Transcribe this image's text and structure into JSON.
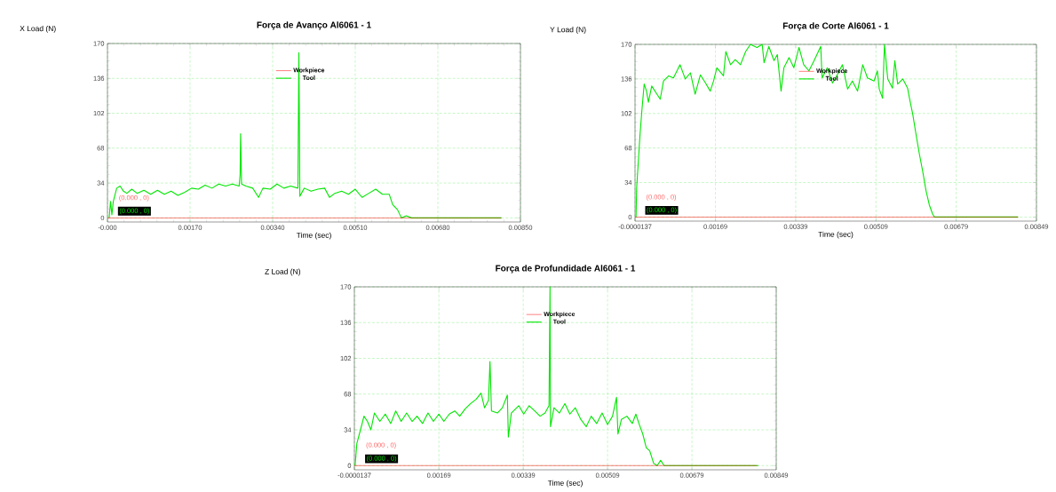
{
  "chart_data": [
    {
      "type": "line",
      "title": "Força de Avanço Al6061 - 1",
      "xlabel": "Time (sec)",
      "ylabel": "X Load (N)",
      "xlim": [
        0,
        0.0085
      ],
      "ylim": [
        -4,
        170
      ],
      "xticks": [
        {
          "value": 0,
          "label": "-0.000"
        },
        {
          "value": 0.0017,
          "label": "0.00170"
        },
        {
          "value": 0.0034,
          "label": "0.00340"
        },
        {
          "value": 0.0051,
          "label": "0.00510"
        },
        {
          "value": 0.0068,
          "label": "0.00680"
        },
        {
          "value": 0.0085,
          "label": "0.00850"
        }
      ],
      "yticks": [
        0,
        34,
        68,
        102,
        136,
        170
      ],
      "grid": true,
      "legend": "top",
      "annotations": [
        "(0.000 , 0)",
        "(0.000 , 0)"
      ],
      "series": [
        {
          "name": "Workpiece",
          "color": "#ff0000",
          "x": [
            0,
            0.0081
          ],
          "values": [
            0,
            0
          ]
        },
        {
          "name": "Tool",
          "color": "#00e600",
          "x": [
            3.5e-05,
            6.3e-05,
            9.1e-05,
            0.00012,
            0.00019,
            0.00026,
            0.00033,
            0.0004,
            0.0005,
            0.00061,
            0.00075,
            0.00089,
            0.00103,
            0.00117,
            0.00131,
            0.00145,
            0.00159,
            0.00173,
            0.00187,
            0.00201,
            0.00215,
            0.00229,
            0.00243,
            0.00257,
            0.00271,
            0.00273,
            0.00274,
            0.00276,
            0.00285,
            0.00299,
            0.00311,
            0.0032,
            0.00335,
            0.00349,
            0.00363,
            0.00377,
            0.00392,
            0.00394,
            0.00396,
            0.00405,
            0.00419,
            0.00433,
            0.00447,
            0.00457,
            0.00468,
            0.00482,
            0.00496,
            0.0051,
            0.00524,
            0.00538,
            0.00552,
            0.00566,
            0.0058,
            0.00587,
            0.00597,
            0.00605,
            0.00615,
            0.00626,
            0.00811
          ],
          "values": [
            0,
            16,
            3,
            16,
            29,
            31,
            26,
            24,
            28,
            24,
            27,
            23,
            27,
            23,
            26,
            22,
            25,
            29,
            28,
            32,
            29,
            33,
            31,
            33,
            31,
            42,
            82,
            33,
            31,
            29,
            20,
            29,
            28,
            33,
            29,
            31,
            29,
            161,
            21,
            29,
            26,
            28,
            29,
            20,
            24,
            26,
            23,
            28,
            20,
            24,
            28,
            23,
            23,
            13,
            8,
            0,
            2,
            0,
            0
          ]
        }
      ]
    },
    {
      "type": "line",
      "title": "Força de Corte Al6061 - 1",
      "xlabel": "Time (sec)",
      "ylabel": "Y Load (N)",
      "xlim": [
        -1.37e-05,
        0.00849
      ],
      "ylim": [
        -4,
        170
      ],
      "xticks": [
        {
          "value": -1.37e-05,
          "label": "-0.0000137"
        },
        {
          "value": 0.00169,
          "label": "0.00169"
        },
        {
          "value": 0.00339,
          "label": "0.00339"
        },
        {
          "value": 0.00509,
          "label": "0.00509"
        },
        {
          "value": 0.00679,
          "label": "0.00679"
        },
        {
          "value": 0.00849,
          "label": "0.00849"
        }
      ],
      "yticks": [
        0,
        34,
        68,
        102,
        136,
        170
      ],
      "grid": true,
      "legend": "top",
      "annotations": [
        "(0.000 , 0)",
        "(0.000 , 0)"
      ],
      "series": [
        {
          "name": "Workpiece",
          "color": "#ff0000",
          "x": [
            -1.37e-05,
            0.0081
          ],
          "values": [
            0,
            0
          ]
        },
        {
          "name": "Tool",
          "color": "#00e600",
          "x": [
            7e-06,
            2.1e-05,
            5.7e-05,
            9.2e-05,
            0.00013,
            0.00018,
            0.00023,
            0.00027,
            0.00034,
            0.00045,
            0.00052,
            0.00059,
            0.0007,
            0.0008,
            0.00094,
            0.00105,
            0.00116,
            0.00126,
            0.00137,
            0.00148,
            0.00158,
            0.00165,
            0.00172,
            0.00186,
            0.00191,
            0.00201,
            0.00211,
            0.00222,
            0.00233,
            0.00243,
            0.00257,
            0.00268,
            0.00272,
            0.00282,
            0.00293,
            0.003,
            0.00308,
            0.00314,
            0.00325,
            0.00335,
            0.00346,
            0.00356,
            0.00367,
            0.00378,
            0.00392,
            0.00395,
            0.00406,
            0.00417,
            0.00427,
            0.00438,
            0.00449,
            0.00459,
            0.0047,
            0.00481,
            0.00491,
            0.00505,
            0.00512,
            0.00516,
            0.00523,
            0.00527,
            0.00534,
            0.00544,
            0.00549,
            0.00555,
            0.00566,
            0.00576,
            0.0058,
            0.00587,
            0.00594,
            0.00601,
            0.00608,
            0.00615,
            0.00622,
            0.00629,
            0.00633,
            0.0081
          ],
          "values": [
            0,
            29,
            55,
            81,
            104,
            131,
            124,
            113,
            129,
            121,
            116,
            134,
            139,
            137,
            150,
            136,
            142,
            121,
            140,
            132,
            124,
            134,
            147,
            139,
            163,
            150,
            155,
            150,
            163,
            170,
            167,
            170,
            152,
            168,
            154,
            160,
            124,
            147,
            157,
            147,
            167,
            150,
            144,
            154,
            168,
            137,
            147,
            132,
            140,
            150,
            126,
            134,
            124,
            150,
            137,
            134,
            144,
            126,
            117,
            170,
            136,
            127,
            154,
            131,
            136,
            127,
            117,
            101,
            81,
            62,
            45,
            26,
            12,
            3,
            0,
            0
          ]
        }
      ]
    },
    {
      "type": "line",
      "title": "Força de Profundidade Al6061 - 1",
      "xlabel": "Time (sec)",
      "ylabel": "Z Load (N)",
      "xlim": [
        -1.37e-05,
        0.00849
      ],
      "ylim": [
        -4,
        170
      ],
      "xticks": [
        {
          "value": -1.37e-05,
          "label": "-0.0000137"
        },
        {
          "value": 0.00169,
          "label": "0.00169"
        },
        {
          "value": 0.00339,
          "label": "0.00339"
        },
        {
          "value": 0.00509,
          "label": "0.00509"
        },
        {
          "value": 0.00679,
          "label": "0.00679"
        },
        {
          "value": 0.00849,
          "label": "0.00849"
        }
      ],
      "yticks": [
        0,
        34,
        68,
        102,
        136,
        170
      ],
      "grid": true,
      "legend": "top",
      "annotations": [
        "(0.000 , 0)",
        "(0.000 , 0)"
      ],
      "series": [
        {
          "name": "Workpiece",
          "color": "#ff0000",
          "x": [
            -1.37e-05,
            0.0081
          ],
          "values": [
            0,
            0
          ]
        },
        {
          "name": "Tool",
          "color": "#00e600",
          "x": [
            1e-06,
            3.6e-05,
            0.00011,
            0.00018,
            0.00025,
            0.00032,
            0.00039,
            0.0005,
            0.00061,
            0.00072,
            0.00082,
            0.00093,
            0.00104,
            0.00115,
            0.00125,
            0.00136,
            0.00147,
            0.00158,
            0.00169,
            0.00179,
            0.0019,
            0.00201,
            0.00211,
            0.00222,
            0.00233,
            0.00244,
            0.00254,
            0.00261,
            0.00269,
            0.00272,
            0.00275,
            0.00287,
            0.00297,
            0.00307,
            0.00309,
            0.00315,
            0.0033,
            0.0034,
            0.00351,
            0.00362,
            0.00373,
            0.00383,
            0.00391,
            0.00393,
            0.00394,
            0.00401,
            0.00412,
            0.00423,
            0.00433,
            0.00444,
            0.00455,
            0.00466,
            0.00476,
            0.00487,
            0.00498,
            0.00509,
            0.00519,
            0.00527,
            0.0053,
            0.00537,
            0.00548,
            0.00559,
            0.00566,
            0.00573,
            0.0058,
            0.00587,
            0.00594,
            0.00602,
            0.00609,
            0.00616,
            0.00623,
            0.00813
          ],
          "values": [
            0,
            21,
            34,
            47,
            42,
            34,
            50,
            42,
            49,
            40,
            52,
            42,
            50,
            42,
            47,
            40,
            50,
            42,
            49,
            42,
            49,
            52,
            47,
            54,
            59,
            63,
            69,
            55,
            62,
            99,
            52,
            50,
            55,
            67,
            27,
            50,
            57,
            49,
            57,
            52,
            47,
            50,
            57,
            170,
            37,
            55,
            50,
            59,
            49,
            55,
            44,
            37,
            47,
            40,
            50,
            39,
            47,
            65,
            30,
            44,
            47,
            40,
            49,
            39,
            30,
            17,
            14,
            2,
            0,
            5,
            0,
            0
          ]
        }
      ]
    }
  ]
}
